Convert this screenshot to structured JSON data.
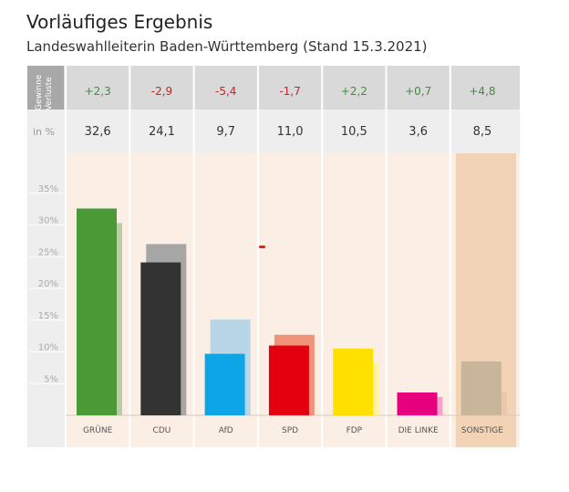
{
  "header": {
    "title": "Vorläufiges Ergebnis",
    "subtitle": "Landeswahlleiterin Baden-Württemberg (Stand 15.3.2021)"
  },
  "chart_data": {
    "type": "bar",
    "categories": [
      "GRÜNE",
      "CDU",
      "AfD",
      "SPD",
      "FDP",
      "DIE LINKE",
      "SONSTIGE"
    ],
    "series": [
      {
        "values": [
          32.6,
          24.1,
          9.7,
          11.0,
          10.5,
          3.6,
          8.5
        ]
      },
      {
        "values": [
          30.3,
          27.0,
          15.1,
          12.7,
          8.3,
          2.9,
          3.7
        ]
      }
    ],
    "changes": [
      "+2,3",
      "-2,9",
      "-5,4",
      "-1,7",
      "+2,2",
      "+0,7",
      "+4,8"
    ],
    "change_signs": [
      "pos",
      "neg",
      "neg",
      "neg",
      "pos",
      "pos",
      "pos"
    ],
    "value_labels": [
      "32,6",
      "24,1",
      "9,7",
      "11,0",
      "10,5",
      "3,6",
      "8,5"
    ],
    "row_label_changes_top": "Gewinne",
    "row_label_changes_bottom": "Verluste",
    "row_label_percent": "in %",
    "ytick_labels": [
      "5%",
      "10%",
      "15%",
      "20%",
      "25%",
      "30%",
      "35%"
    ],
    "yticks": [
      5,
      10,
      15,
      20,
      25,
      30,
      35
    ],
    "ylim": [
      0,
      35
    ],
    "colors_current": [
      "#4a9a38",
      "#333333",
      "#0ea5e6",
      "#e3000f",
      "#ffe000",
      "#e6007e",
      "#c9b69a"
    ],
    "colors_previous": [
      "#b7cfa3",
      "#a6a6a6",
      "#b9d5e8",
      "#f0937a",
      "#fff2a0",
      "#f5a3c9",
      "#e9c8ab"
    ],
    "positive_color": "#3f8f3a",
    "negative_color": "#cc2222"
  }
}
